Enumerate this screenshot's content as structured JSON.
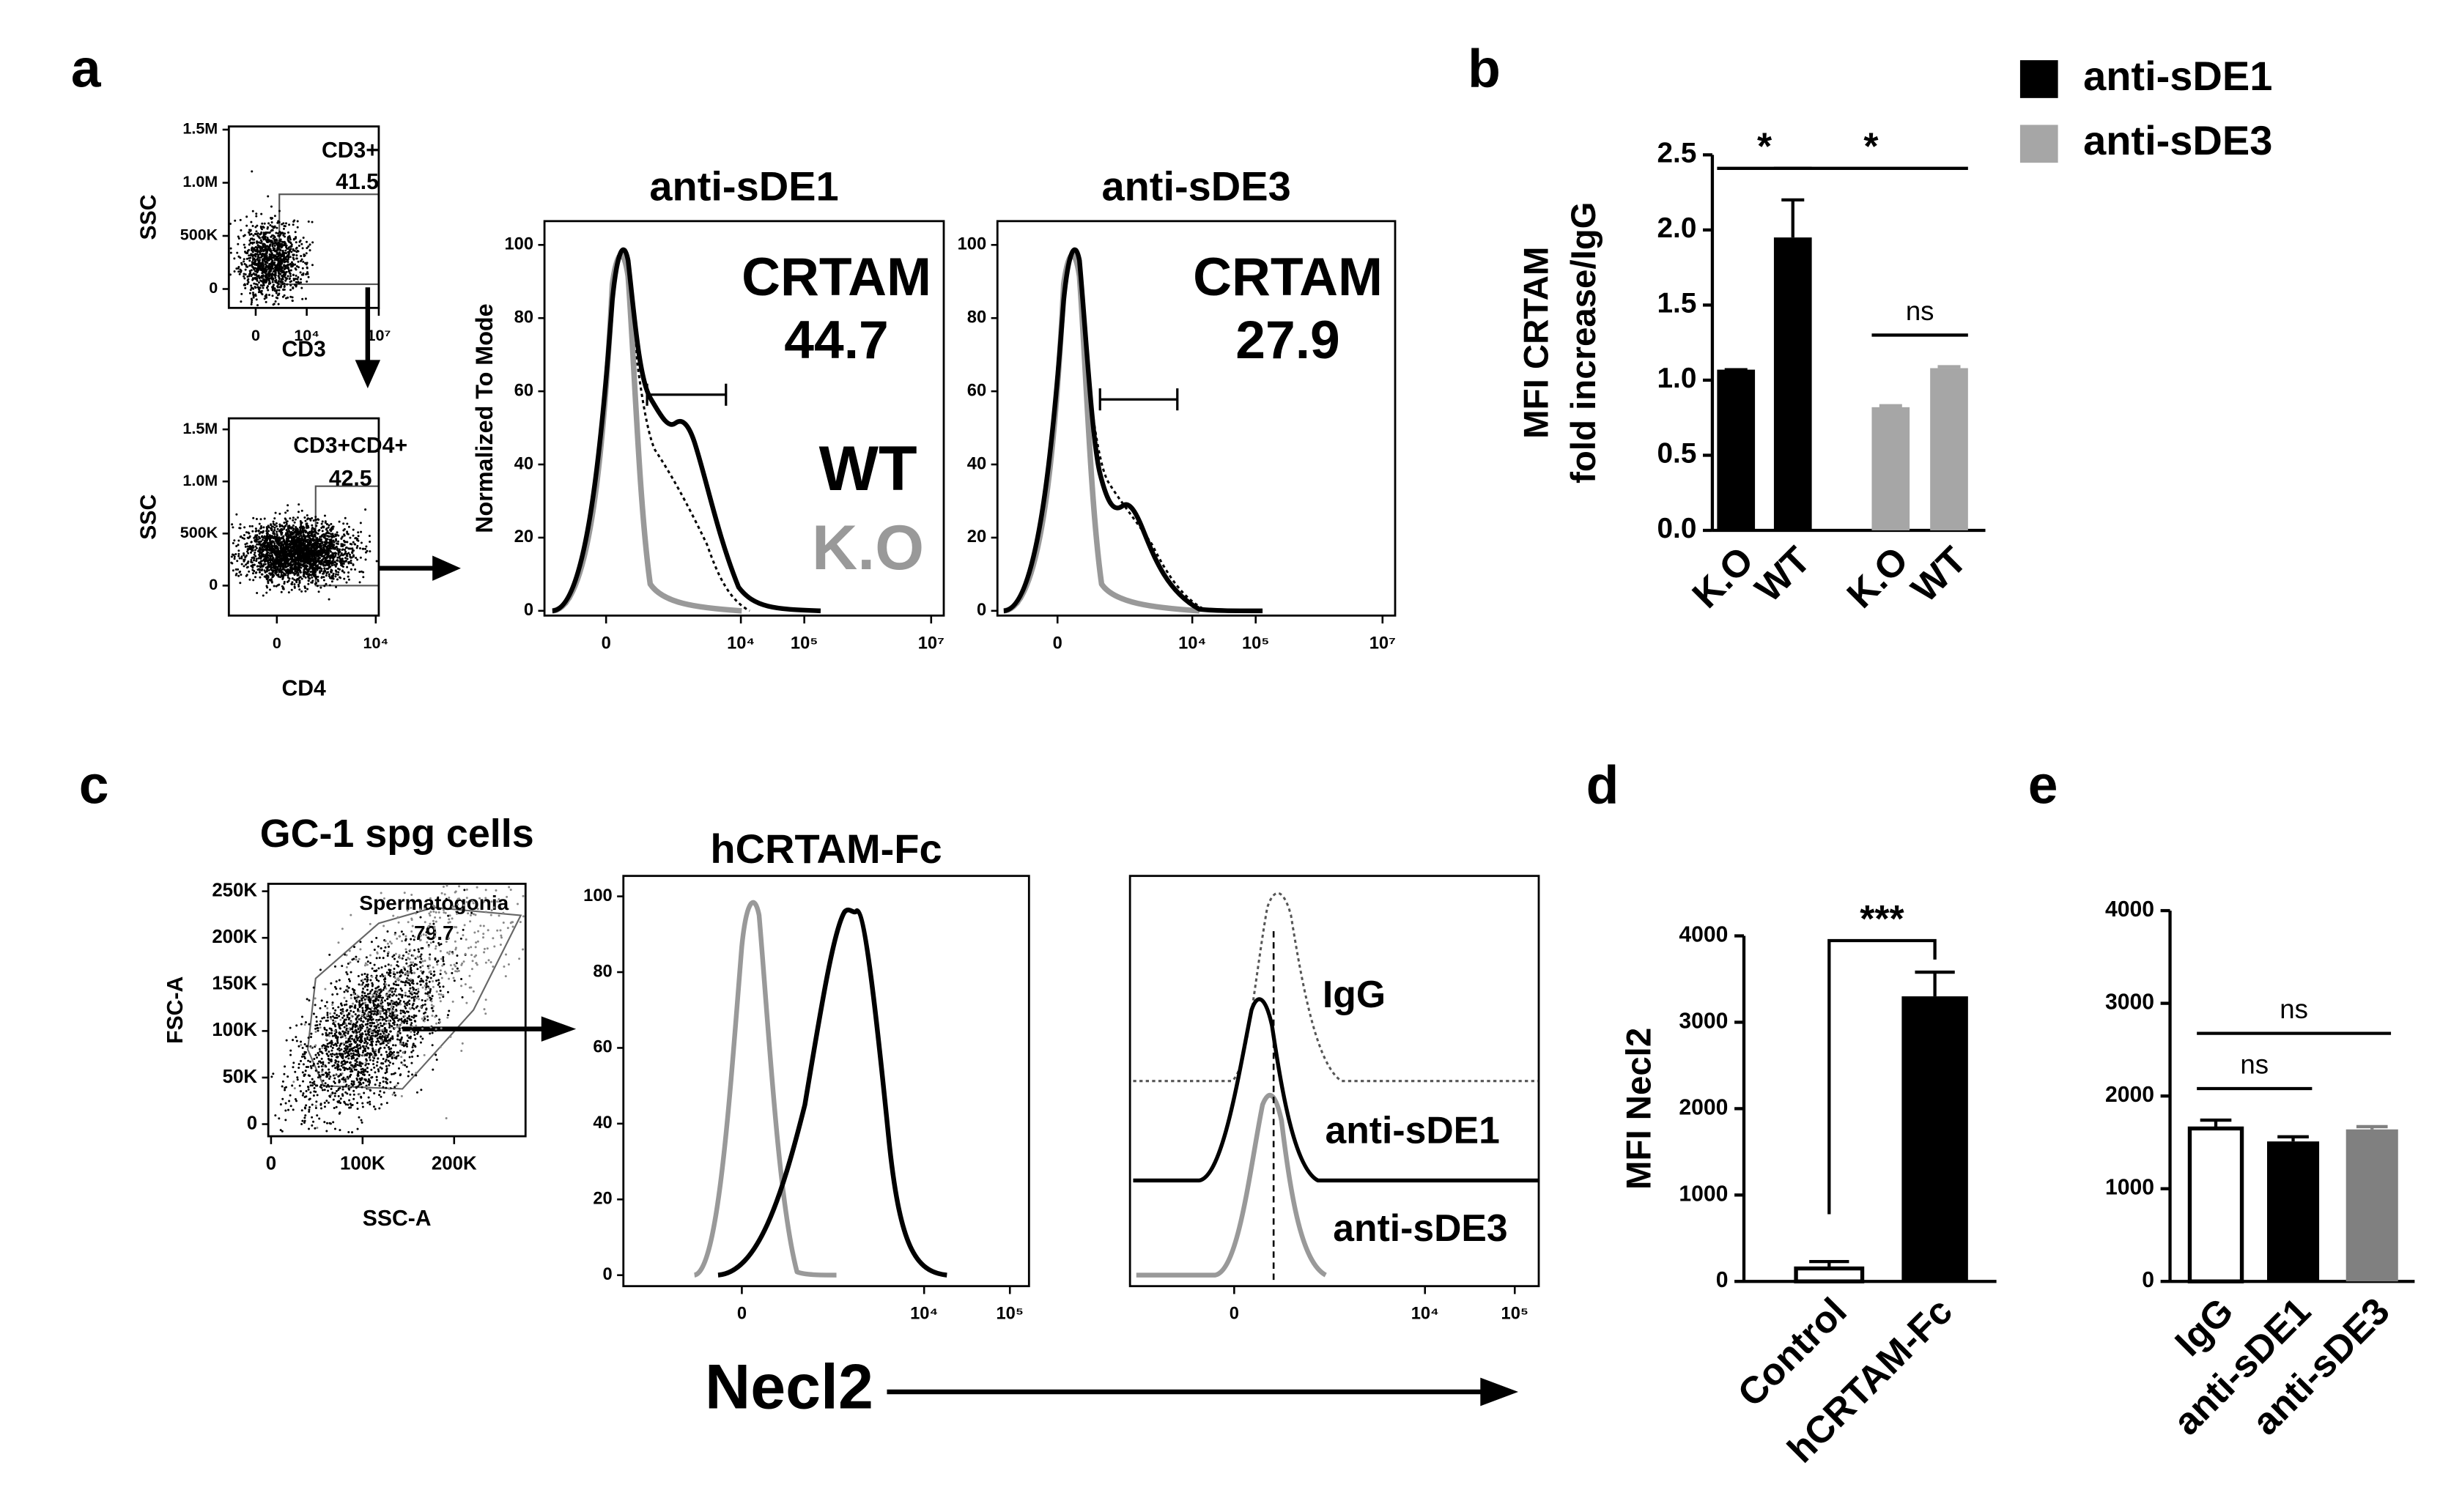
{
  "figure": {
    "panel_labels": [
      "a",
      "b",
      "c",
      "d",
      "e"
    ],
    "legend": [
      {
        "name": "anti-sDE1",
        "color": "#000000"
      },
      {
        "name": "anti-sDE3",
        "color": "#a6a6a6"
      }
    ],
    "x_label": "Necl2"
  },
  "chart_data": [
    {
      "type": "flow-dot",
      "ylabel": "SSC",
      "xlabel": "CD3",
      "xscale": "asinh",
      "xlim": [
        -980,
        10000000
      ],
      "xticks": [
        0,
        {
          "value": 10000,
          "label": "10⁴"
        },
        {
          "value": 10000000,
          "label": "10⁷"
        }
      ],
      "ylim": [
        -178000,
        1530000
      ],
      "yticks": [
        0,
        {
          "value": 500000,
          "label": "500K"
        },
        {
          "value": 1000000,
          "label": "1.0M"
        },
        {
          "value": 1500000,
          "label": "1.5M"
        }
      ],
      "gate": {
        "label": "CD3+",
        "value": 41.5
      }
    },
    {
      "type": "flow-dot",
      "ylabel": "SSC",
      "xlabel": "CD4",
      "xscale": "asinh",
      "xlim": [
        -800,
        11600
      ],
      "xticks": [
        0,
        {
          "value": 10000,
          "label": "10⁴"
        }
      ],
      "ylim": [
        -288000,
        1606000
      ],
      "yticks": [
        0,
        {
          "value": 500000,
          "label": "500K"
        },
        {
          "value": 1000000,
          "label": "1.0M"
        },
        {
          "value": 1500000,
          "label": "1.5M"
        }
      ],
      "gate": {
        "label": "CD3+CD4+",
        "value": 42.5
      }
    },
    {
      "type": "flow-histogram",
      "title": "anti-sDE1",
      "ylabel": "Normalized To Mode",
      "xscale": "asinh",
      "xlim": [
        -694,
        15800000
      ],
      "xticks": [
        0,
        {
          "value": 10000,
          "label": "10⁴"
        },
        {
          "value": 100000,
          "label": "10⁵"
        },
        {
          "value": 10000000,
          "label": "10⁷"
        }
      ],
      "ylim": [
        -1.3,
        106.5
      ],
      "yticks": [
        0,
        20,
        40,
        60,
        80,
        100
      ],
      "annotation": {
        "label": "CRTAM",
        "value": 44.7
      },
      "legend": [
        {
          "name": "WT",
          "color": "#000000"
        },
        {
          "name": "K.O",
          "color": "#999999"
        }
      ]
    },
    {
      "type": "flow-histogram",
      "title": "anti-sDE3",
      "xscale": "asinh",
      "xlim": [
        -656,
        15800000
      ],
      "xticks": [
        0,
        {
          "value": 10000,
          "label": "10⁴"
        },
        {
          "value": 100000,
          "label": "10⁵"
        },
        {
          "value": 10000000,
          "label": "10⁷"
        }
      ],
      "ylim": [
        -1.3,
        106.5
      ],
      "yticks": [
        0,
        20,
        40,
        60,
        80,
        100
      ],
      "annotation": {
        "label": "CRTAM",
        "value": 27.9
      }
    },
    {
      "type": "bar",
      "ylabel": [
        "MFI CRTAM",
        "fold increase/IgG"
      ],
      "categories": [
        "K.O",
        "WT",
        "K.O",
        "WT"
      ],
      "values": [
        1.07,
        1.95,
        0.82,
        1.08
      ],
      "errors": [
        0,
        0.25,
        0.01,
        0.01
      ],
      "colors": [
        "#000000",
        "#000000",
        "#a6a6a6",
        "#a6a6a6"
      ],
      "ylim": [
        0,
        2.5
      ],
      "yticks": [
        0.0,
        0.5,
        1.0,
        1.5,
        2.0,
        2.5
      ],
      "annotations": [
        {
          "text": "*",
          "between": [
            0,
            1
          ]
        },
        {
          "text": "*",
          "between": [
            1,
            3
          ]
        },
        {
          "text": "ns",
          "between": [
            2,
            3
          ]
        }
      ]
    },
    {
      "type": "flow-dot",
      "title": "GC-1 spg cells",
      "ylabel": "FSC-A",
      "xlabel": "SSC-A",
      "xscale": "linear",
      "xlim": [
        -3000,
        278000
      ],
      "xticks": [
        0,
        {
          "value": 100000,
          "label": "100K"
        },
        {
          "value": 200000,
          "label": "200K"
        }
      ],
      "ylim": [
        -13000,
        258000
      ],
      "yticks": [
        0,
        {
          "value": 50000,
          "label": "50K"
        },
        {
          "value": 100000,
          "label": "100K"
        },
        {
          "value": 150000,
          "label": "150K"
        },
        {
          "value": 200000,
          "label": "200K"
        },
        {
          "value": 250000,
          "label": "250K"
        }
      ],
      "gate": {
        "label": "Spermatogonia",
        "value": 79.7
      }
    },
    {
      "type": "flow-histogram",
      "title": "hCRTAM-Fc",
      "xscale": "asinh",
      "xlim": [
        -1800,
        167000
      ],
      "xticks": [
        0,
        {
          "value": 10000,
          "label": "10⁴"
        },
        {
          "value": 100000,
          "label": "10⁵"
        }
      ],
      "ylim": [
        -2.9,
        105.4
      ],
      "yticks": [
        0,
        20,
        40,
        60,
        80,
        100
      ]
    },
    {
      "type": "flow-histogram",
      "xscale": "asinh",
      "xlim": [
        -1080,
        185000
      ],
      "xticks": [
        0,
        {
          "value": 10000,
          "label": "10⁴"
        },
        {
          "value": 100000,
          "label": "10⁵"
        }
      ],
      "labels": [
        "IgG",
        "anti-sDE1",
        "anti-sDE3"
      ]
    },
    {
      "type": "bar",
      "ylabel": [
        "MFI Necl2"
      ],
      "categories": [
        "Control",
        "hCRTAM-Fc"
      ],
      "values": [
        150,
        3300
      ],
      "errors": [
        80,
        280
      ],
      "colors": [
        "#ffffff",
        "#000000"
      ],
      "ylim": [
        0,
        4000
      ],
      "yticks": [
        0,
        1000,
        2000,
        3000,
        4000
      ],
      "annotations": [
        {
          "text": "***",
          "between": [
            0,
            1
          ],
          "bracket": true
        }
      ]
    },
    {
      "type": "bar",
      "categories": [
        "IgG",
        "anti-sDE1",
        "anti-sDE3"
      ],
      "values": [
        1650,
        1510,
        1640
      ],
      "errors": [
        90,
        50,
        30
      ],
      "colors": [
        "#ffffff",
        "#000000",
        "#808080"
      ],
      "ylim": [
        0,
        4000
      ],
      "yticks": [
        0,
        1000,
        2000,
        3000,
        4000
      ],
      "annotations": [
        {
          "text": "ns",
          "between": [
            0,
            1
          ]
        },
        {
          "text": "ns",
          "between": [
            0,
            2
          ]
        }
      ]
    }
  ]
}
